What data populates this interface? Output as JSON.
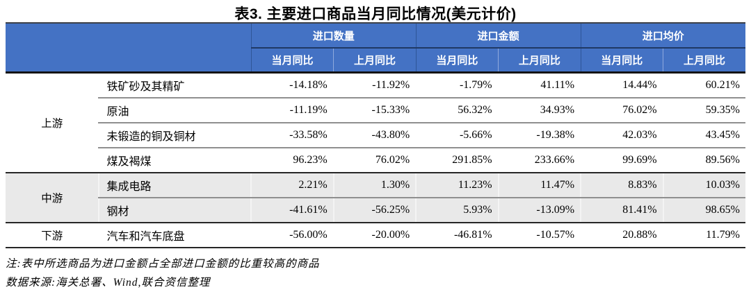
{
  "title": "表3. 主要进口商品当月同比情况(美元计价)",
  "table": {
    "groups": [
      {
        "label": "进口数量"
      },
      {
        "label": "进口金额"
      },
      {
        "label": "进口均价"
      }
    ],
    "sub_headers": [
      "当月同比",
      "上月同比",
      "当月同比",
      "上月同比",
      "当月同比",
      "上月同比"
    ],
    "rows": [
      {
        "category": "上游",
        "name": "铁矿砂及其精矿",
        "values": [
          "-14.18%",
          "-11.92%",
          "-1.79%",
          "41.11%",
          "14.44%",
          "60.21%"
        ]
      },
      {
        "category": "上游",
        "name": "原油",
        "values": [
          "-11.19%",
          "-15.33%",
          "56.32%",
          "34.93%",
          "76.02%",
          "59.35%"
        ]
      },
      {
        "category": "上游",
        "name": "未锻造的铜及铜材",
        "values": [
          "-33.58%",
          "-43.80%",
          "-5.66%",
          "-19.38%",
          "42.03%",
          "43.45%"
        ]
      },
      {
        "category": "上游",
        "name": "煤及褐煤",
        "values": [
          "96.23%",
          "76.02%",
          "291.85%",
          "233.66%",
          "99.69%",
          "89.56%"
        ]
      },
      {
        "category": "中游",
        "name": "集成电路",
        "values": [
          "2.21%",
          "1.30%",
          "11.23%",
          "11.47%",
          "8.83%",
          "10.03%"
        ]
      },
      {
        "category": "中游",
        "name": "钢材",
        "values": [
          "-41.61%",
          "-56.25%",
          "5.93%",
          "-13.09%",
          "81.41%",
          "98.65%"
        ]
      },
      {
        "category": "下游",
        "name": "汽车和汽车底盘",
        "values": [
          "-56.00%",
          "-20.00%",
          "-46.81%",
          "-10.57%",
          "20.88%",
          "11.79%"
        ]
      }
    ]
  },
  "notes": [
    "注:表中所选商品为进口金额占全部进口金额的比重较高的商品",
    "数据来源:海关总署、Wind,联合资信整理"
  ],
  "colors": {
    "header_bg": "#4472c4",
    "header_underline": "#1f3864",
    "stripe_bg": "#e9e9e9",
    "text": "#000000"
  }
}
